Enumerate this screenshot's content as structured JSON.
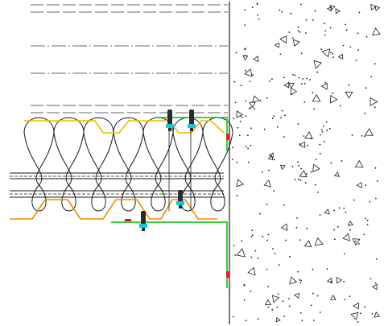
{
  "drawing": {
    "kind": "cad-section-detail",
    "layers": [
      "dashed-lines-top",
      "dash-dot-lines",
      "insulation-rolls",
      "steel-trapezoidal-sheet-top",
      "steel-trapezoidal-sheet-bottom",
      "green-flashing-profile",
      "fasteners",
      "concrete-wall-section"
    ],
    "colors": {
      "background": "#ffffff",
      "line": "#1a1a1a",
      "dashed": "#9a9a9a",
      "top_sheet": "#f0b800",
      "bottom_sheet": "#f08a00",
      "flashing": "#22cc22",
      "fastener_head": "#2a2a2a",
      "fastener_cyan": "#19c4d8",
      "seal_red": "#e02020"
    },
    "icons": {
      "fastener": "screw-icon",
      "seal": "sealant-icon"
    }
  }
}
